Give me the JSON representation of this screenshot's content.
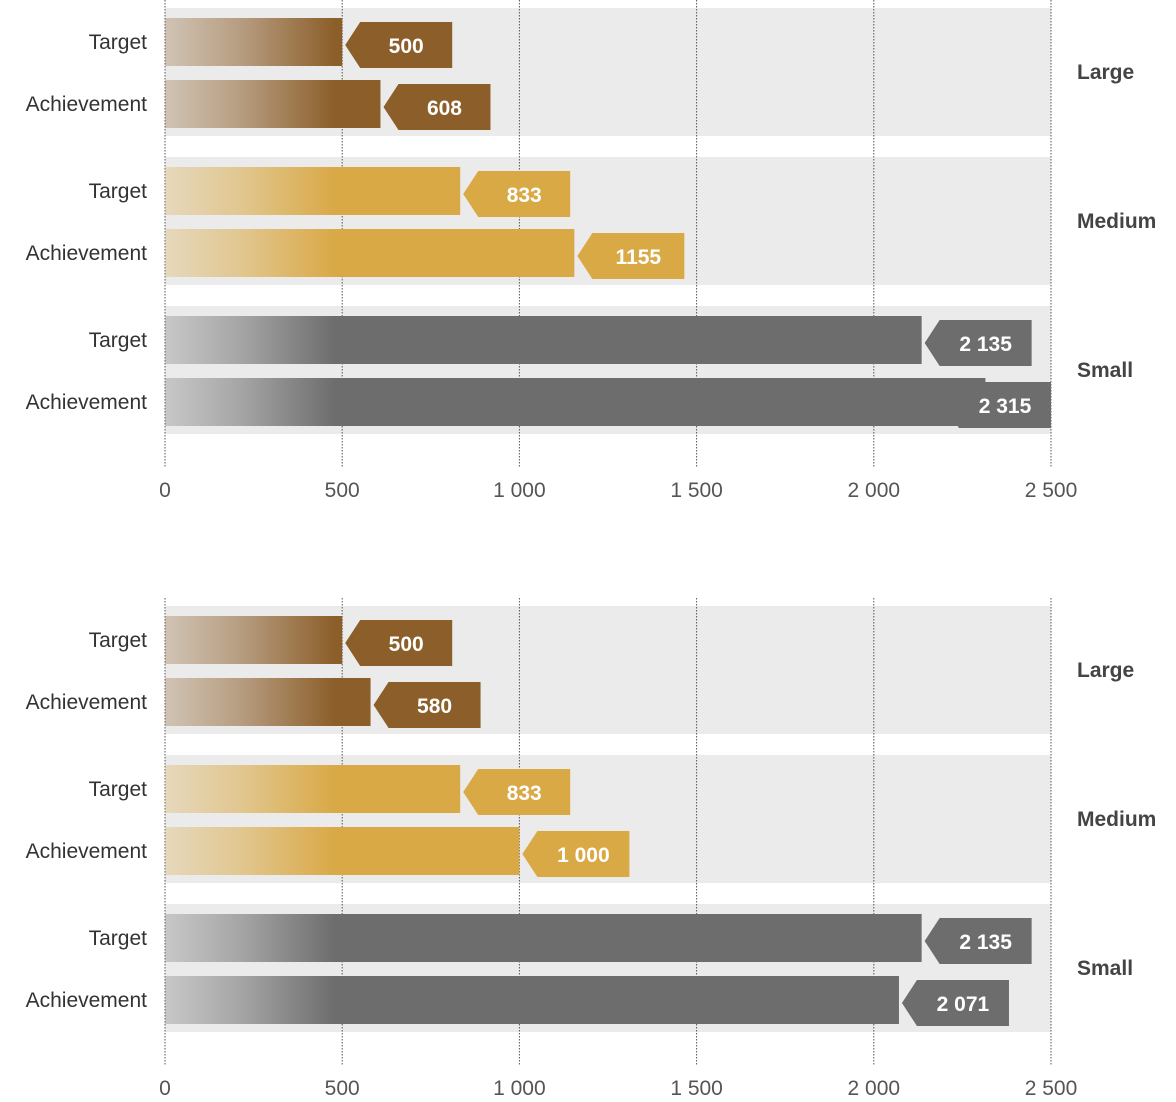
{
  "colors": {
    "large": "#8c5e2a",
    "medium": "#d9a946",
    "small": "#6d6d6d",
    "band": "#ebebeb",
    "grid": "#555555"
  },
  "chart_data": [
    {
      "type": "bar",
      "orientation": "horizontal",
      "xlim": [
        0,
        2500
      ],
      "ticks": [
        0,
        500,
        1000,
        1500,
        2000,
        2500
      ],
      "tick_labels": [
        "0",
        "500",
        "1 000",
        "1 500",
        "2 000",
        "2 500"
      ],
      "grid": true,
      "groups": [
        {
          "name": "Large",
          "color_key": "large",
          "bars": [
            {
              "label": "Target",
              "value": 500,
              "value_label": "500"
            },
            {
              "label": "Achievement",
              "value": 608,
              "value_label": "608"
            }
          ]
        },
        {
          "name": "Medium",
          "color_key": "medium",
          "bars": [
            {
              "label": "Target",
              "value": 833,
              "value_label": "833"
            },
            {
              "label": "Achievement",
              "value": 1155,
              "value_label": "1155"
            }
          ]
        },
        {
          "name": "Small",
          "color_key": "small",
          "bars": [
            {
              "label": "Target",
              "value": 2135,
              "value_label": "2 135"
            },
            {
              "label": "Achievement",
              "value": 2315,
              "value_label": "2 315"
            }
          ]
        }
      ]
    },
    {
      "type": "bar",
      "orientation": "horizontal",
      "xlim": [
        0,
        2500
      ],
      "ticks": [
        0,
        500,
        1000,
        1500,
        2000,
        2500
      ],
      "tick_labels": [
        "0",
        "500",
        "1 000",
        "1 500",
        "2 000",
        "2 500"
      ],
      "grid": true,
      "groups": [
        {
          "name": "Large",
          "color_key": "large",
          "bars": [
            {
              "label": "Target",
              "value": 500,
              "value_label": "500"
            },
            {
              "label": "Achievement",
              "value": 580,
              "value_label": "580"
            }
          ]
        },
        {
          "name": "Medium",
          "color_key": "medium",
          "bars": [
            {
              "label": "Target",
              "value": 833,
              "value_label": "833"
            },
            {
              "label": "Achievement",
              "value": 1000,
              "value_label": "1 000"
            }
          ]
        },
        {
          "name": "Small",
          "color_key": "small",
          "bars": [
            {
              "label": "Target",
              "value": 2135,
              "value_label": "2 135"
            },
            {
              "label": "Achievement",
              "value": 2071,
              "value_label": "2 071"
            }
          ]
        }
      ]
    }
  ]
}
